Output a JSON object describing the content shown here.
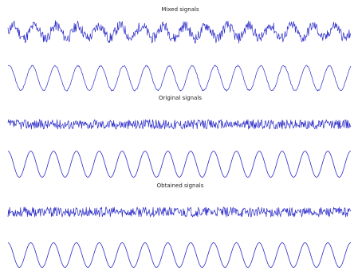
{
  "titles": {
    "mixed": "Mixed signals",
    "original": "Original signals",
    "obtained": "Obtained signals"
  },
  "chart_data": [
    {
      "type": "line",
      "title": "Mixed signals",
      "series": [
        {
          "kind": "sine_plus_noise",
          "cycles": 16,
          "amplitude": 0.55,
          "noise": 0.45,
          "phase": 0.0,
          "seed": 11
        },
        {
          "kind": "sine_plus_noise",
          "cycles": 15,
          "amplitude": 1.0,
          "noise": 0.06,
          "phase": 1.2,
          "seed": 23
        }
      ],
      "ylim": [
        -1.1,
        1.1
      ],
      "grid": false
    },
    {
      "type": "line",
      "title": "Original signals",
      "series": [
        {
          "kind": "noise",
          "cycles": 0,
          "amplitude": 0.0,
          "noise": 0.75,
          "phase": 0.0,
          "seed": 37
        },
        {
          "kind": "sine",
          "cycles": 15,
          "amplitude": 1.0,
          "noise": 0.0,
          "phase": 1.6,
          "seed": 0
        }
      ],
      "ylim": [
        -1.1,
        1.1
      ],
      "grid": false
    },
    {
      "type": "line",
      "title": "Obtained signals",
      "series": [
        {
          "kind": "noise",
          "cycles": 0,
          "amplitude": 0.0,
          "noise": 0.75,
          "phase": 0.0,
          "seed": 53
        },
        {
          "kind": "sine",
          "cycles": 15,
          "amplitude": 1.0,
          "noise": 0.0,
          "phase": 1.6,
          "seed": 0
        }
      ],
      "ylim": [
        -1.1,
        1.1
      ],
      "grid": false
    }
  ],
  "colors": {
    "line": "#2b2bc8",
    "background": "#ffffff",
    "title": "#222222"
  }
}
